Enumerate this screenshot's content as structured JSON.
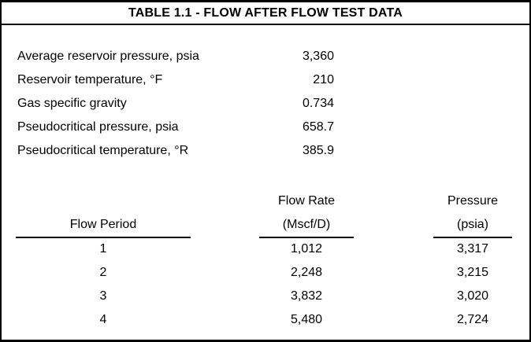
{
  "title": "TABLE 1.1 - FLOW AFTER FLOW TEST DATA",
  "properties": [
    {
      "label": "Average reservoir pressure, psia",
      "value": "3,360"
    },
    {
      "label": "Reservoir temperature, °F",
      "value": "210"
    },
    {
      "label": "Gas specific gravity",
      "value": "0.734"
    },
    {
      "label": "Pseudocritical pressure, psia",
      "value": "658.7"
    },
    {
      "label": "Pseudocritical temperature, °R",
      "value": "385.9"
    }
  ],
  "flow_table": {
    "columns": [
      {
        "line1": "",
        "line2": "Flow Period"
      },
      {
        "line1": "Flow Rate",
        "line2": "(Mscf/D)"
      },
      {
        "line1": "Pressure",
        "line2": "(psia)"
      }
    ],
    "rows": [
      {
        "period": "1",
        "rate": "1,012",
        "pressure": "3,317"
      },
      {
        "period": "2",
        "rate": "2,248",
        "pressure": "3,215"
      },
      {
        "period": "3",
        "rate": "3,832",
        "pressure": "3,020"
      },
      {
        "period": "4",
        "rate": "5,480",
        "pressure": "2,724"
      }
    ]
  },
  "colors": {
    "background": "#ffffff",
    "text": "#000000",
    "border": "#000000"
  }
}
